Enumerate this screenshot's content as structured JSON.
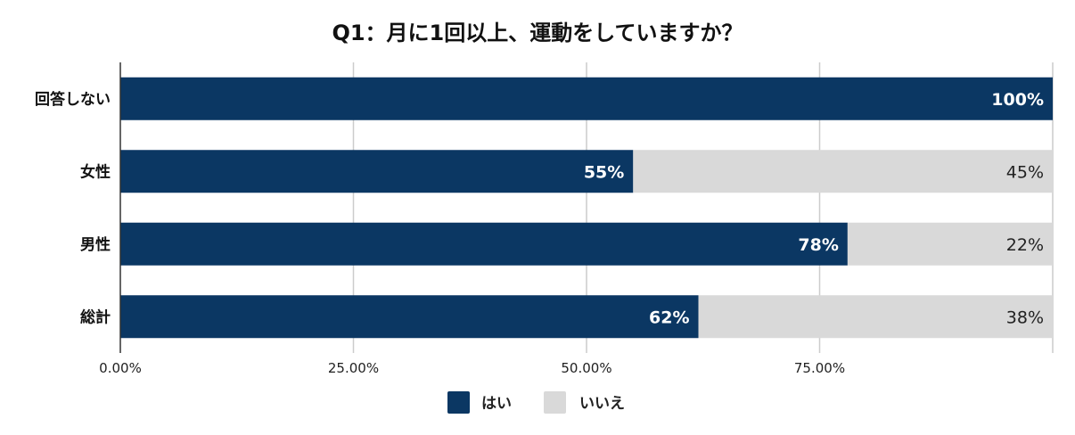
{
  "chart_data": {
    "type": "bar",
    "orientation": "horizontal",
    "stacked": true,
    "title": "Q1：月に1回以上、運動をしていますか？",
    "categories": [
      "回答しない",
      "女性",
      "男性",
      "総計"
    ],
    "series": [
      {
        "name": "はい",
        "color": "#0b3763",
        "values": [
          1.0,
          0.55,
          0.78,
          0.62
        ],
        "labels": [
          "100%",
          "55%",
          "78%",
          "62%"
        ]
      },
      {
        "name": "いいえ",
        "color": "#d9d9d9",
        "values": [
          0.0,
          0.45,
          0.22,
          0.38
        ],
        "labels": [
          "",
          "45%",
          "22%",
          "38%"
        ]
      }
    ],
    "x_ticks": [
      "0.00%",
      "25.00%",
      "50.00%",
      "75.00%"
    ],
    "x_tick_values": [
      0,
      0.25,
      0.5,
      0.75
    ],
    "xlim": [
      0,
      1
    ],
    "grid": true,
    "legend_position": "bottom"
  }
}
